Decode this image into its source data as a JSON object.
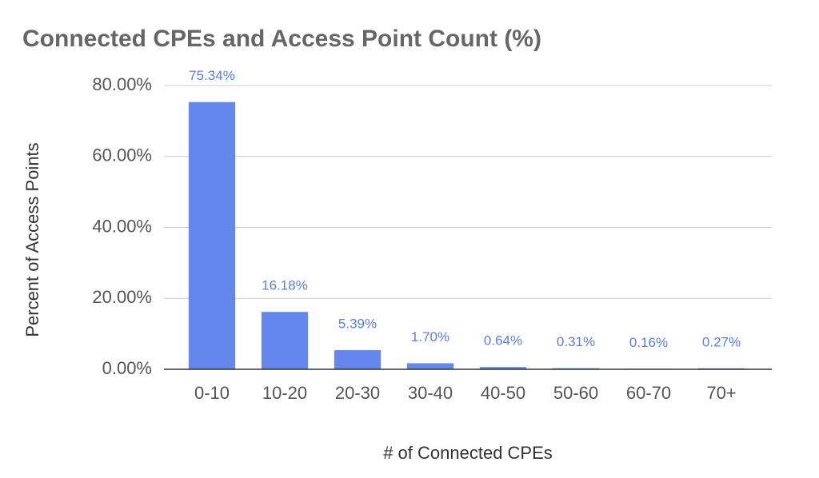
{
  "chart_data": {
    "type": "bar",
    "title": "Connected CPEs and Access Point Count (%)",
    "x_label": "# of Connected CPEs",
    "y_label": "Percent of Access Points",
    "categories": [
      "0-10",
      "10-20",
      "20-30",
      "30-40",
      "40-50",
      "50-60",
      "60-70",
      "70+"
    ],
    "values": [
      75.34,
      16.18,
      5.39,
      1.7,
      0.64,
      0.31,
      0.16,
      0.27
    ],
    "value_labels": [
      "75.34%",
      "16.18%",
      "5.39%",
      "1.70%",
      "0.64%",
      "0.31%",
      "0.16%",
      "0.27%"
    ],
    "color": "#6487ee",
    "ylim": [
      0,
      80
    ],
    "yticks": [
      {
        "value": 0,
        "label": "0.00%"
      },
      {
        "value": 20,
        "label": "20.00%"
      },
      {
        "value": 40,
        "label": "40.00%"
      },
      {
        "value": 60,
        "label": "60.00%"
      },
      {
        "value": 80,
        "label": "80.00%"
      }
    ],
    "grid": true
  }
}
